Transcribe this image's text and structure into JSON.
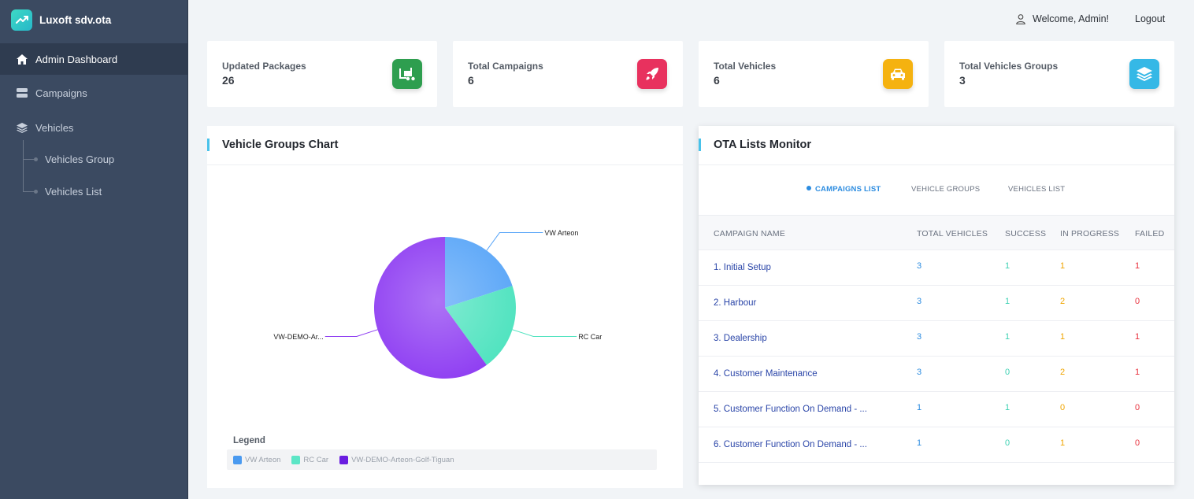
{
  "brand": {
    "name": "Luxoft sdv.ota",
    "logo_icon": "trending-up-icon"
  },
  "sidebar": {
    "items": [
      {
        "label": "Admin Dashboard",
        "icon": "home-icon",
        "active": true
      },
      {
        "label": "Campaigns",
        "icon": "server-icon",
        "active": false
      },
      {
        "label": "Vehicles",
        "icon": "layers-icon",
        "active": false
      }
    ],
    "sub_items": [
      {
        "label": "Vehicles Group"
      },
      {
        "label": "Vehicles List"
      }
    ]
  },
  "topbar": {
    "welcome": "Welcome, Admin!",
    "logout": "Logout",
    "user_icon": "user-icon"
  },
  "stats": [
    {
      "label": "Updated Packages",
      "value": "26",
      "icon": "forklift-icon",
      "color": "#2e9e4f"
    },
    {
      "label": "Total Campaigns",
      "value": "6",
      "icon": "rocket-icon",
      "color": "#e8315e"
    },
    {
      "label": "Total Vehicles",
      "value": "6",
      "icon": "car-icon",
      "color": "#f5b210"
    },
    {
      "label": "Total Vehicles Groups",
      "value": "3",
      "icon": "layers-icon",
      "color": "#35b8e6"
    }
  ],
  "chart_panel": {
    "title": "Vehicle Groups Chart",
    "legend_title": "Legend"
  },
  "chart_data": {
    "type": "pie",
    "slices": [
      {
        "label": "VW Arteon",
        "legend": "VW Arteon",
        "value": 1,
        "color": "#5aa6f8"
      },
      {
        "label": "RC Car",
        "legend": "RC Car",
        "value": 1,
        "color": "#4fe3bf"
      },
      {
        "label": "VW-DEMO-Ar...",
        "legend": "VW-DEMO-Arteon-Golf-Tiguan",
        "value": 3,
        "color": "#8e3df2"
      }
    ]
  },
  "ota_panel": {
    "title": "OTA Lists Monitor",
    "tabs": [
      {
        "label": "CAMPAIGNS LIST",
        "active": true
      },
      {
        "label": "VEHICLE GROUPS",
        "active": false
      },
      {
        "label": "VEHICLES LIST",
        "active": false
      }
    ],
    "columns": [
      "CAMPAIGN NAME",
      "TOTAL VEHICLES",
      "SUCCESS",
      "IN PROGRESS",
      "FAILED"
    ],
    "rows": [
      {
        "name": "1. Initial Setup",
        "total": "3",
        "success": "1",
        "in_progress": "1",
        "failed": "1"
      },
      {
        "name": "2. Harbour",
        "total": "3",
        "success": "1",
        "in_progress": "2",
        "failed": "0"
      },
      {
        "name": "3. Dealership",
        "total": "3",
        "success": "1",
        "in_progress": "1",
        "failed": "1"
      },
      {
        "name": "4. Customer Maintenance",
        "total": "3",
        "success": "0",
        "in_progress": "2",
        "failed": "1"
      },
      {
        "name": "5. Customer Function On Demand - ...",
        "total": "1",
        "success": "1",
        "in_progress": "0",
        "failed": "0"
      },
      {
        "name": "6. Customer Function On Demand - ...",
        "total": "1",
        "success": "0",
        "in_progress": "1",
        "failed": "0"
      }
    ]
  }
}
